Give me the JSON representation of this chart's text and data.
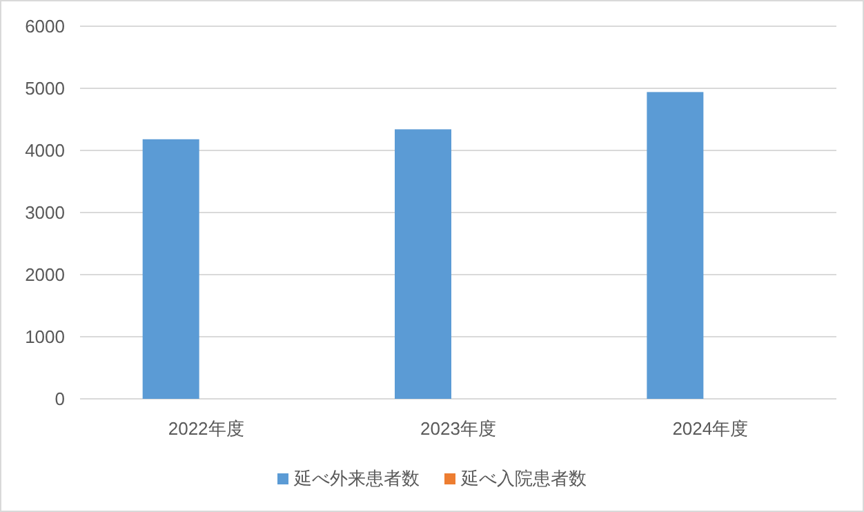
{
  "chart_data": {
    "type": "bar",
    "categories": [
      "2022年度",
      "2023年度",
      "2024年度"
    ],
    "series": [
      {
        "name": "延べ外来患者数",
        "color": "#5b9bd5",
        "values": [
          4180,
          4340,
          4940
        ]
      },
      {
        "name": "延べ入院患者数",
        "color": "#ed7d31",
        "values": [
          null,
          null,
          null
        ]
      }
    ],
    "ylim": [
      0,
      6000
    ],
    "yticks": [
      0,
      1000,
      2000,
      3000,
      4000,
      5000,
      6000
    ],
    "grid": "y",
    "legend": "bottom"
  }
}
